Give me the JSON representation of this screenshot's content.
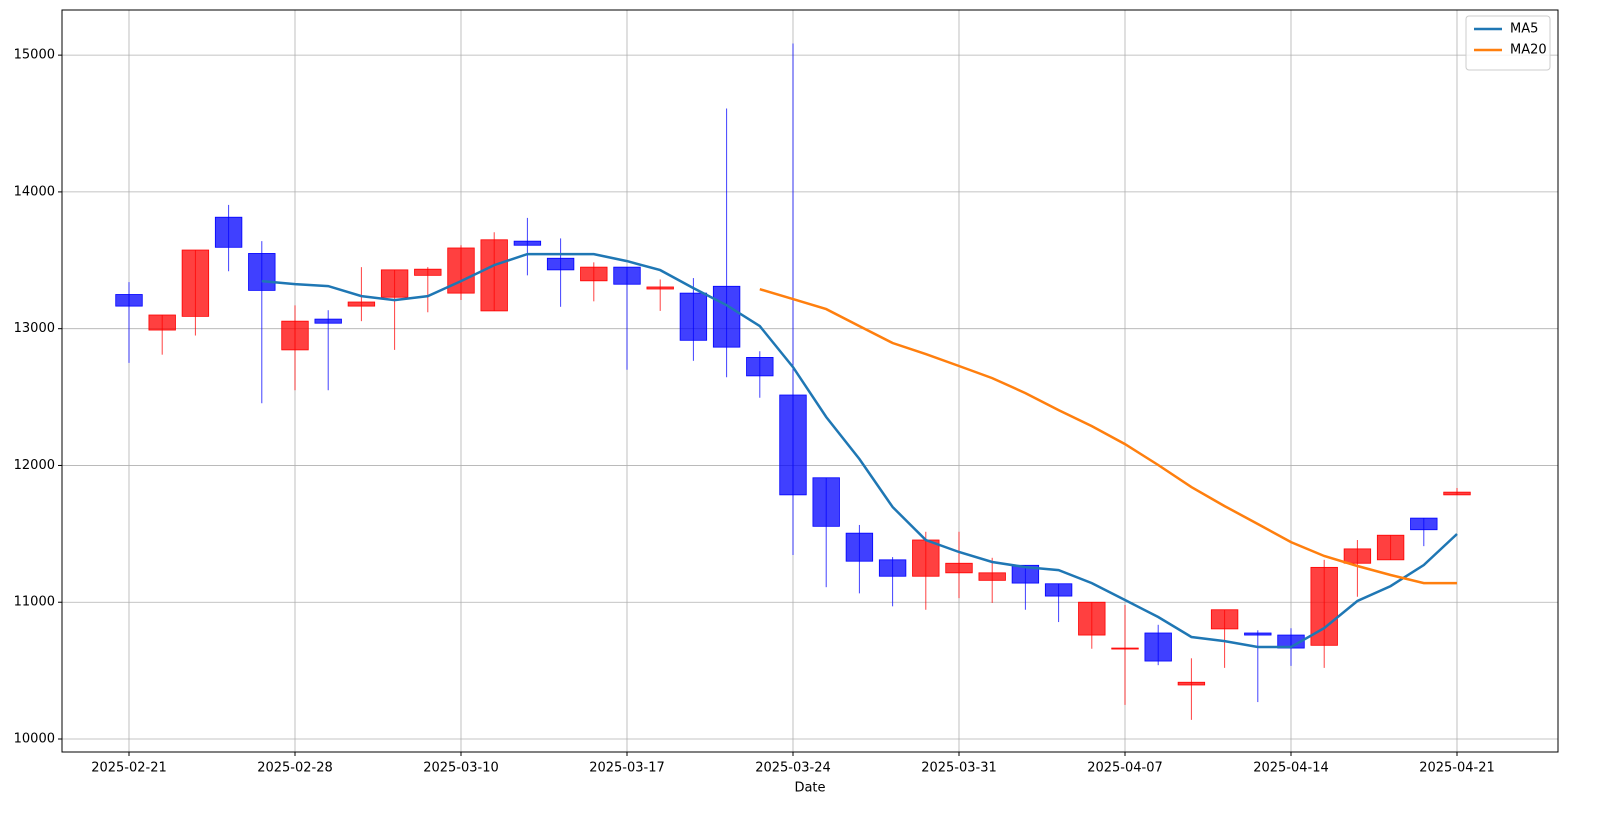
{
  "chart_data": {
    "type": "candlestick",
    "x_label": "Date",
    "categories": [
      "2025-02-21",
      null,
      null,
      null,
      null,
      "2025-02-28",
      null,
      null,
      null,
      null,
      "2025-03-10",
      null,
      null,
      null,
      null,
      "2025-03-17",
      null,
      null,
      null,
      null,
      "2025-03-24",
      null,
      null,
      null,
      null,
      "2025-03-31",
      null,
      null,
      null,
      null,
      "2025-04-07",
      null,
      null,
      null,
      null,
      "2025-04-14",
      null,
      null,
      null,
      null,
      "2025-04-21"
    ],
    "open": [
      13250,
      12990,
      13090,
      13815,
      13550,
      12845,
      13070,
      13165,
      13230,
      13390,
      13260,
      13130,
      13640,
      13515,
      13350,
      13450,
      13290,
      13260,
      13310,
      12790,
      12515,
      11910,
      11505,
      11310,
      11190,
      11215,
      11160,
      11270,
      11135,
      10760,
      10660,
      10775,
      10395,
      10805,
      10775,
      10760,
      10685,
      11285,
      11310,
      11615,
      11785
    ],
    "high": [
      13340,
      13100,
      13575,
      13905,
      13640,
      13170,
      13135,
      13450,
      13430,
      13450,
      13610,
      13705,
      13810,
      13660,
      13485,
      13450,
      13360,
      13370,
      14610,
      12835,
      15085,
      11910,
      11565,
      11330,
      11515,
      11515,
      11325,
      11270,
      11135,
      11000,
      10980,
      10835,
      10590,
      10945,
      10795,
      10810,
      11310,
      11455,
      11490,
      11615,
      11835
    ],
    "low": [
      12750,
      12810,
      12950,
      13420,
      12455,
      12550,
      12550,
      13055,
      12845,
      13120,
      13210,
      13130,
      13390,
      13160,
      13200,
      12700,
      13130,
      12765,
      12645,
      12495,
      11345,
      11110,
      11065,
      10970,
      10945,
      11030,
      10995,
      10945,
      10855,
      10660,
      10250,
      10540,
      10140,
      10520,
      10270,
      10535,
      10520,
      11040,
      11310,
      11410,
      11785
    ],
    "close": [
      13165,
      13100,
      13575,
      13595,
      13280,
      13055,
      13040,
      13195,
      13430,
      13435,
      13590,
      13650,
      13610,
      13430,
      13450,
      13325,
      13305,
      12915,
      12865,
      12655,
      11785,
      11555,
      11300,
      11190,
      11455,
      11285,
      11215,
      11140,
      11045,
      11000,
      10665,
      10570,
      10415,
      10945,
      10760,
      10665,
      11255,
      11390,
      11490,
      11530,
      11805
    ],
    "up_color": "red",
    "down_color": "blue",
    "series": [
      {
        "name": "MA5",
        "color": "#1f77b4",
        "values": [
          null,
          null,
          null,
          null,
          13348,
          13326,
          13311,
          13238,
          13209,
          13238,
          13348,
          13465,
          13545,
          13545,
          13545,
          13494,
          13428,
          13297,
          13172,
          13019,
          12719,
          12354,
          12047,
          11696,
          11455,
          11367,
          11294,
          11257,
          11235,
          11140,
          11016,
          10892,
          10746,
          10716,
          10673,
          10673,
          10811,
          11009,
          11118,
          11272,
          11499
        ]
      },
      {
        "name": "MA20",
        "color": "#ff7f0e",
        "values": [
          null,
          null,
          null,
          null,
          null,
          null,
          null,
          null,
          null,
          null,
          null,
          null,
          null,
          null,
          null,
          null,
          null,
          null,
          null,
          13289,
          13216,
          13143,
          13019,
          12895,
          12814,
          12727,
          12639,
          12529,
          12405,
          12288,
          12156,
          12003,
          11842,
          11703,
          11572,
          11440,
          11338,
          11265,
          11199,
          11140,
          11140
        ]
      }
    ],
    "ylim": [
      9905,
      15330
    ],
    "yticks": [
      10000,
      11000,
      12000,
      13000,
      14000,
      15000
    ],
    "grid": true,
    "legend": "upper right"
  }
}
